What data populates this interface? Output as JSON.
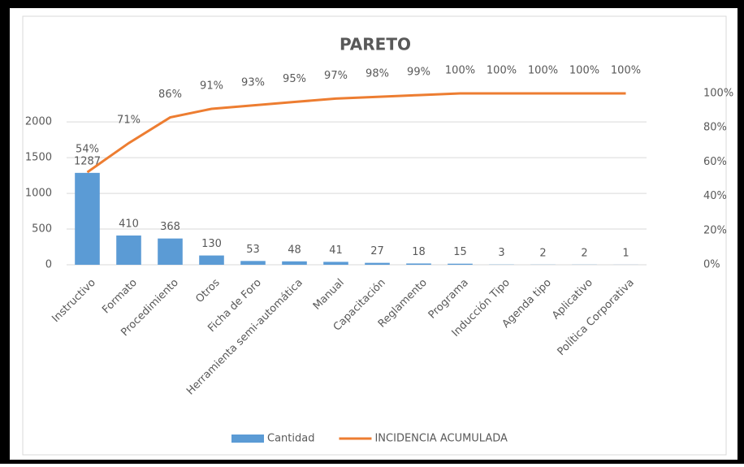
{
  "chart_data": {
    "type": "bar",
    "title": "PARETO",
    "categories": [
      "Instructivo",
      "Formato",
      "Procedimiento",
      "Otros",
      "Ficha de Foro",
      "Herramienta semi-automática",
      "Manual",
      "Capacitación",
      "Reglamento",
      "Programa",
      "Inducción Tipo",
      "Agenda tipo",
      "Aplicativo",
      "Política Corporativa"
    ],
    "series": [
      {
        "name": "Cantidad",
        "type": "bar",
        "color": "#5b9bd5",
        "values": [
          1287,
          410,
          368,
          130,
          53,
          48,
          41,
          27,
          18,
          15,
          3,
          2,
          2,
          1
        ]
      },
      {
        "name": "INCIDENCIA ACUMULADA",
        "type": "line",
        "axis": "y2",
        "color": "#ed7d31",
        "values": [
          54,
          71,
          86,
          91,
          93,
          95,
          97,
          98,
          99,
          100,
          100,
          100,
          100,
          100
        ],
        "value_labels": [
          "54%",
          "71%",
          "86%",
          "91%",
          "93%",
          "95%",
          "97%",
          "98%",
          "99%",
          "100%",
          "100%",
          "100%",
          "100%",
          "100%"
        ]
      }
    ],
    "ylim": [
      0,
      2400
    ],
    "yticks": [
      0,
      500,
      1000,
      1500,
      2000
    ],
    "y2lim": [
      0,
      100
    ],
    "y2ticks": [
      {
        "value": 0,
        "label": "0%"
      },
      {
        "value": 20,
        "label": "20%"
      },
      {
        "value": 40,
        "label": "40%"
      },
      {
        "value": 60,
        "label": "60%"
      },
      {
        "value": 80,
        "label": "80%"
      },
      {
        "value": 100,
        "label": "100%"
      }
    ],
    "grid": true,
    "legend": "bottom"
  }
}
